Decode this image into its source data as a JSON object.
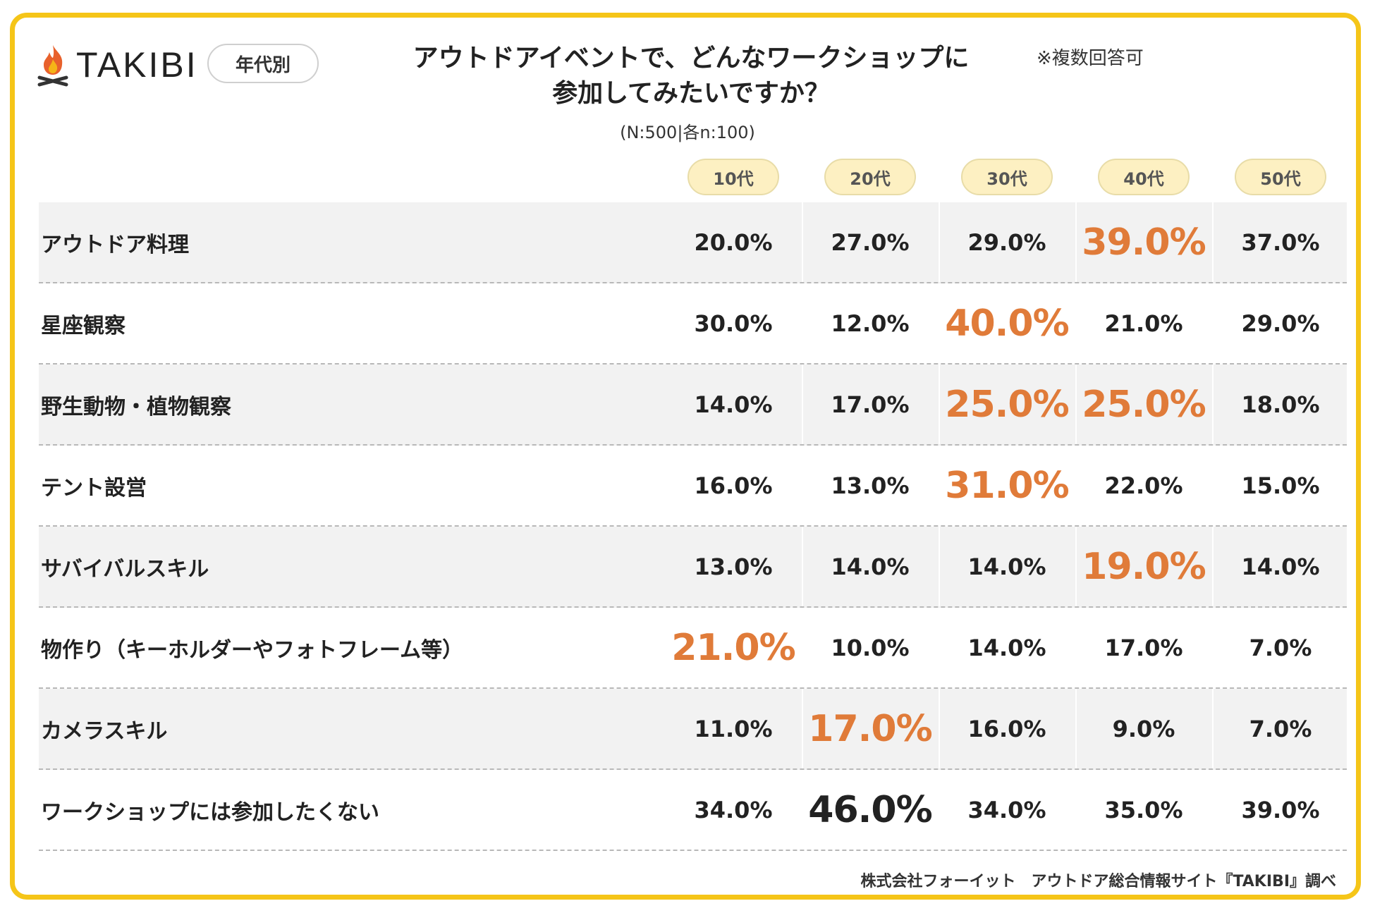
{
  "brand": {
    "name": "TAKIBI",
    "logo": "campfire-icon"
  },
  "badge": "年代別",
  "note": "※複数回答可",
  "footer": "株式会社フォーイット　アウトドア総合情報サイト『TAKIBI』調べ",
  "colors": {
    "frame": "#f5c518",
    "highlight": "#e07b39",
    "header_pill": "#fdf0c2",
    "row_shade": "#f2f2f2"
  },
  "chart_data": {
    "type": "table",
    "title": "アウトドアイベントで、どんなワークショップに 参加してみたいですか？",
    "title_lines": [
      "アウトドアイベントで、どんなワークショップに",
      "参加してみたいですか？"
    ],
    "subtitle": "(N:500|各n:100)",
    "columns": [
      "10代",
      "20代",
      "30代",
      "40代",
      "50代"
    ],
    "rows": [
      {
        "label": "アウトドア料理",
        "values": [
          "20.0%",
          "27.0%",
          "29.0%",
          "39.0%",
          "37.0%"
        ],
        "highlight": [
          3
        ],
        "max_black": []
      },
      {
        "label": "星座観察",
        "values": [
          "30.0%",
          "12.0%",
          "40.0%",
          "21.0%",
          "29.0%"
        ],
        "highlight": [
          2
        ],
        "max_black": []
      },
      {
        "label": "野生動物・植物観察",
        "values": [
          "14.0%",
          "17.0%",
          "25.0%",
          "25.0%",
          "18.0%"
        ],
        "highlight": [
          2,
          3
        ],
        "max_black": []
      },
      {
        "label": "テント設営",
        "values": [
          "16.0%",
          "13.0%",
          "31.0%",
          "22.0%",
          "15.0%"
        ],
        "highlight": [
          2
        ],
        "max_black": []
      },
      {
        "label": "サバイバルスキル",
        "values": [
          "13.0%",
          "14.0%",
          "14.0%",
          "19.0%",
          "14.0%"
        ],
        "highlight": [
          3
        ],
        "max_black": []
      },
      {
        "label": "物作り（キーホルダーやフォトフレーム等）",
        "values": [
          "21.0%",
          "10.0%",
          "14.0%",
          "17.0%",
          "7.0%"
        ],
        "highlight": [
          0
        ],
        "max_black": []
      },
      {
        "label": "カメラスキル",
        "values": [
          "11.0%",
          "17.0%",
          "16.0%",
          "9.0%",
          "7.0%"
        ],
        "highlight": [
          1
        ],
        "max_black": []
      },
      {
        "label": "ワークショップには参加したくない",
        "values": [
          "34.0%",
          "46.0%",
          "34.0%",
          "35.0%",
          "39.0%"
        ],
        "highlight": [],
        "max_black": [
          1
        ]
      }
    ]
  }
}
